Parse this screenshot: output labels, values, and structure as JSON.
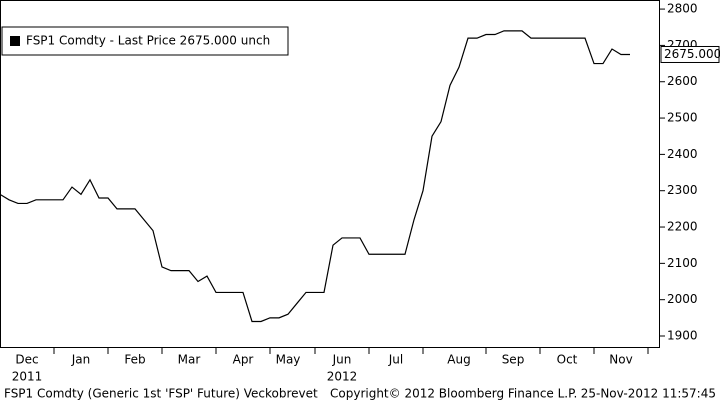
{
  "chart_data": {
    "type": "line",
    "legend": "FSP1 Comdty - Last Price 2675.000 unch",
    "last_price_label": "2675.000",
    "last_price": 2675,
    "footer_left": "FSP1 Comdty (Generic 1st 'FSP' Future) Veckobrevet",
    "footer_center": "Copyright© 2012 Bloomberg Finance L.P.",
    "footer_right": "25-Nov-2012 11:57:45",
    "year_labels": [
      "2011",
      "2012"
    ],
    "categories": [
      null,
      null,
      null,
      "Dec",
      null,
      null,
      null,
      null,
      null,
      "Jan",
      null,
      null,
      null,
      null,
      null,
      "Feb",
      null,
      null,
      null,
      null,
      null,
      "Mar",
      null,
      null,
      null,
      null,
      null,
      "Apr",
      null,
      null,
      null,
      null,
      "May",
      null,
      null,
      null,
      null,
      null,
      "Jun",
      null,
      null,
      null,
      null,
      null,
      "Jul",
      null,
      null,
      null,
      null,
      null,
      null,
      "Aug",
      null,
      null,
      null,
      null,
      null,
      "Sep",
      null,
      null,
      null,
      null,
      null,
      "Oct",
      null,
      null,
      null,
      null,
      null,
      "Nov",
      null
    ],
    "series": [
      {
        "name": "FSP1 Comdty",
        "color": "#000000",
        "values": [
          2290,
          2275,
          2265,
          2265,
          2275,
          2275,
          2275,
          2275,
          2310,
          2290,
          2330,
          2280,
          2280,
          2250,
          2250,
          2250,
          2220,
          2190,
          2090,
          2080,
          2080,
          2080,
          2050,
          2065,
          2020,
          2020,
          2020,
          2020,
          1940,
          1940,
          1950,
          1950,
          1960,
          1990,
          2020,
          2020,
          2020,
          2150,
          2170,
          2170,
          2170,
          2125,
          2125,
          2125,
          2125,
          2125,
          2220,
          2300,
          2450,
          2490,
          2590,
          2640,
          2720,
          2720,
          2730,
          2730,
          2740,
          2740,
          2740,
          2720,
          2720,
          2720,
          2720,
          2720,
          2720,
          2720,
          2650,
          2650,
          2690,
          2675,
          2675
        ]
      }
    ],
    "ylim": [
      1867,
      2825
    ],
    "yticks": [
      1900,
      2000,
      2100,
      2200,
      2300,
      2400,
      2500,
      2600,
      2700,
      2800
    ],
    "grid": false
  }
}
